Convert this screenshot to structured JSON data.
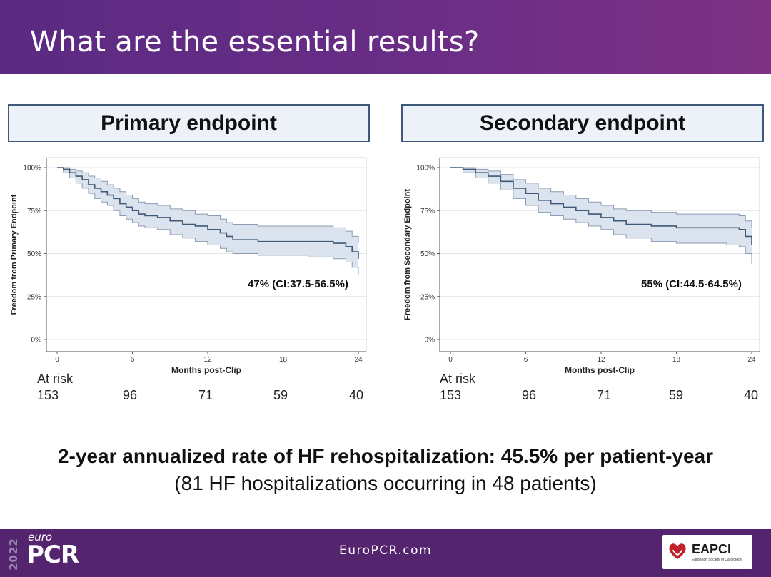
{
  "slide": {
    "title": "What are the essential results?",
    "summary_bold": "2-year annualized rate of HF rehospitalization: 45.5% per patient-year",
    "summary_sub": "(81 HF hospitalizations occurring in 48 patients)"
  },
  "footer": {
    "year": "2022",
    "logo_euro": "euro",
    "logo_pcr": "PCR",
    "url": "EuroPCR.com",
    "badge_name": "EAPCI",
    "badge_sub": "European Society of Cardiology"
  },
  "colors": {
    "header_purple": "#5b2a82",
    "footer_purple": "#54246f",
    "curve": "#3f5a78",
    "ci_band": "#dbe3ee",
    "ci_edge": "#8a9bb2",
    "box_fill": "#ecf2f8",
    "box_border": "#3e5a78"
  },
  "chart_data": [
    {
      "type": "line",
      "box_title": "Primary endpoint",
      "xlabel": "Months post-Clip",
      "ylabel": "Freedom from Primary Endpoint",
      "xlim": [
        0,
        24
      ],
      "ylim": [
        0,
        100
      ],
      "xticks": [
        0,
        6,
        12,
        18,
        24
      ],
      "ytick_labels": [
        "0%",
        "25%",
        "50%",
        "75%",
        "100%"
      ],
      "yticks": [
        0,
        25,
        50,
        75,
        100
      ],
      "grid": true,
      "annotation": "47% (CI:37.5-56.5%)",
      "at_risk_label": "At risk",
      "at_risk_times": [
        0,
        6,
        12,
        18,
        24
      ],
      "at_risk": [
        "153",
        "96",
        "71",
        "59",
        "40"
      ],
      "series": [
        {
          "x": [
            0,
            0.5,
            1,
            1.5,
            2,
            2.5,
            3,
            3.5,
            4,
            4.5,
            5,
            5.5,
            6,
            6.5,
            7,
            8,
            9,
            10,
            11,
            12,
            13,
            13.5,
            14,
            16,
            20,
            22,
            23,
            23.5,
            24
          ],
          "y": [
            100,
            99,
            97,
            95,
            93,
            90,
            88,
            86,
            84,
            82,
            79,
            77,
            75,
            73,
            72,
            71,
            69,
            67,
            66,
            64,
            62,
            60,
            58,
            57,
            57,
            56,
            54,
            51,
            47
          ],
          "lower": [
            100,
            97,
            94,
            91,
            88,
            85,
            82,
            80,
            78,
            75,
            72,
            70,
            68,
            66,
            65,
            64,
            61,
            59,
            57,
            55,
            53,
            51,
            50,
            49,
            48,
            47,
            45,
            42,
            38
          ],
          "upper": [
            100,
            100,
            99,
            98,
            97,
            95,
            94,
            92,
            90,
            88,
            86,
            84,
            82,
            80,
            79,
            78,
            76,
            75,
            73,
            72,
            70,
            68,
            67,
            66,
            66,
            65,
            63,
            60,
            56
          ]
        }
      ]
    },
    {
      "type": "line",
      "box_title": "Secondary endpoint",
      "xlabel": "Months post-Clip",
      "ylabel": "Freedom from Secondary Endpoint",
      "xlim": [
        0,
        24
      ],
      "ylim": [
        0,
        100
      ],
      "xticks": [
        0,
        6,
        12,
        18,
        24
      ],
      "ytick_labels": [
        "0%",
        "25%",
        "50%",
        "75%",
        "100%"
      ],
      "yticks": [
        0,
        25,
        50,
        75,
        100
      ],
      "grid": true,
      "annotation": "55% (CI:44.5-64.5%)",
      "at_risk_label": "At risk",
      "at_risk_times": [
        0,
        6,
        12,
        18,
        24
      ],
      "at_risk": [
        "153",
        "96",
        "71",
        "59",
        "40"
      ],
      "series": [
        {
          "x": [
            0,
            1,
            2,
            3,
            4,
            5,
            6,
            7,
            8,
            9,
            10,
            11,
            12,
            13,
            14,
            16,
            18,
            20,
            22,
            23,
            23.5,
            24
          ],
          "y": [
            100,
            99,
            97,
            95,
            92,
            88,
            85,
            81,
            79,
            77,
            75,
            73,
            71,
            69,
            67,
            66,
            65,
            65,
            65,
            64,
            60,
            55
          ],
          "lower": [
            100,
            97,
            94,
            91,
            87,
            82,
            78,
            74,
            72,
            70,
            68,
            66,
            64,
            61,
            59,
            57,
            56,
            56,
            55,
            54,
            50,
            44
          ],
          "upper": [
            100,
            100,
            99,
            98,
            96,
            93,
            91,
            88,
            86,
            84,
            82,
            80,
            78,
            76,
            75,
            74,
            73,
            73,
            73,
            72,
            69,
            65
          ]
        }
      ]
    }
  ]
}
